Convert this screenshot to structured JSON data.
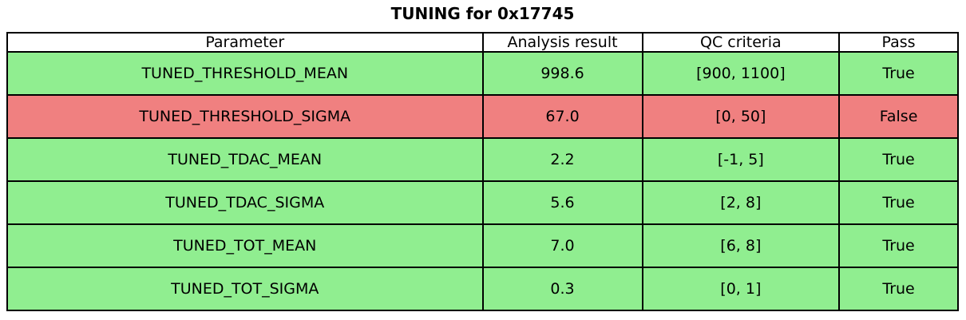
{
  "chart_data": {
    "type": "table",
    "title": "TUNING for 0x17745",
    "columns": [
      "Parameter",
      "Analysis result",
      "QC criteria",
      "Pass"
    ],
    "rows": [
      {
        "parameter": "TUNED_THRESHOLD_MEAN",
        "result": "998.6",
        "criteria": "[900, 1100]",
        "pass": "True"
      },
      {
        "parameter": "TUNED_THRESHOLD_SIGMA",
        "result": "67.0",
        "criteria": "[0, 50]",
        "pass": "False"
      },
      {
        "parameter": "TUNED_TDAC_MEAN",
        "result": "2.2",
        "criteria": "[-1, 5]",
        "pass": "True"
      },
      {
        "parameter": "TUNED_TDAC_SIGMA",
        "result": "5.6",
        "criteria": "[2, 8]",
        "pass": "True"
      },
      {
        "parameter": "TUNED_TOT_MEAN",
        "result": "7.0",
        "criteria": "[6, 8]",
        "pass": "True"
      },
      {
        "parameter": "TUNED_TOT_SIGMA",
        "result": "0.3",
        "criteria": "[0, 1]",
        "pass": "True"
      }
    ]
  },
  "colors": {
    "pass_bg": "#90ee90",
    "fail_bg": "#f08080",
    "header_bg": "#ffffff",
    "border": "#000000",
    "text": "#000000"
  }
}
